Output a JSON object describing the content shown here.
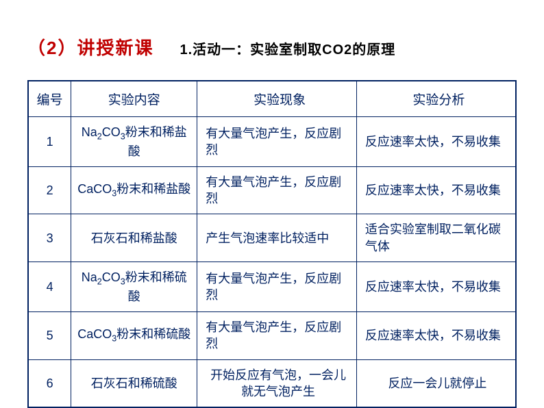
{
  "header": {
    "section": "（2）讲授新课",
    "activity": "1.活动一：实验室制取CO2的原理"
  },
  "table": {
    "border_color": "#002060",
    "text_color": "#002060",
    "section_title_color": "#c00000",
    "activity_title_color": "#000000",
    "cols": {
      "id": "编号",
      "content": "实验内容",
      "phenom": "实验现象",
      "analysis": "实验分析"
    },
    "rows": [
      {
        "id": "1",
        "content": "Na₂CO₃粉末和稀盐酸",
        "phenom": "有大量气泡产生，反应剧烈",
        "analysis": "反应速率太快，不易收集"
      },
      {
        "id": "2",
        "content": "CaCO₃粉末和稀盐酸",
        "phenom": "有大量气泡产生，反应剧烈",
        "analysis": "反应速率太快，不易收集"
      },
      {
        "id": "3",
        "content": "石灰石和稀盐酸",
        "phenom": "产生气泡速率比较适中",
        "analysis": "适合实验室制取二氧化碳气体"
      },
      {
        "id": "4",
        "content": "Na₂CO₃粉末和稀硫酸",
        "phenom": "有大量气泡产生，反应剧烈",
        "analysis": "反应速率太快，不易收集"
      },
      {
        "id": "5",
        "content": "CaCO₃粉末和稀硫酸",
        "phenom": "有大量气泡产生，反应剧烈",
        "analysis": "反应速率太快，不易收集"
      },
      {
        "id": "6",
        "content": "石灰石和稀硫酸",
        "phenom": "开始反应有气泡，一会儿就无气泡产生",
        "analysis": "反应一会儿就停止"
      }
    ]
  }
}
